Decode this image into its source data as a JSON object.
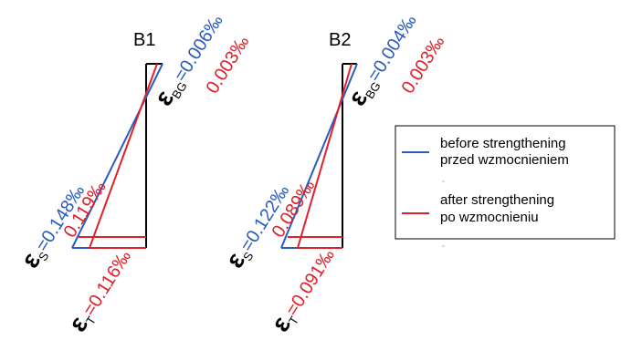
{
  "colors": {
    "before": "#2a5cbf",
    "after": "#e0202a",
    "section": "#000000"
  },
  "diagrams": [
    {
      "title": "B1",
      "epsilon_symbol": "ε",
      "strain_bg": {
        "subscript": "BG",
        "before": "=0.006‰",
        "after": "0.003‰"
      },
      "strain_s": {
        "subscript": "S",
        "before": "=0.148‰",
        "after": "0.119‰"
      },
      "strain_t": {
        "subscript": "T",
        "after": "=0.116‰"
      }
    },
    {
      "title": "B2",
      "epsilon_symbol": "ε",
      "strain_bg": {
        "subscript": "BG",
        "before": "=0.004‰",
        "after": "0.003‰"
      },
      "strain_s": {
        "subscript": "S",
        "before": "=0.122‰",
        "after": "0.089‰"
      },
      "strain_t": {
        "subscript": "T",
        "after": "=0.091‰"
      }
    }
  ],
  "legend": {
    "before": {
      "line1": "before strengthening",
      "line2": "przed wzmocnieniem"
    },
    "after": {
      "line1": "after strengthening",
      "line2": "po wzmocnieniu"
    }
  }
}
